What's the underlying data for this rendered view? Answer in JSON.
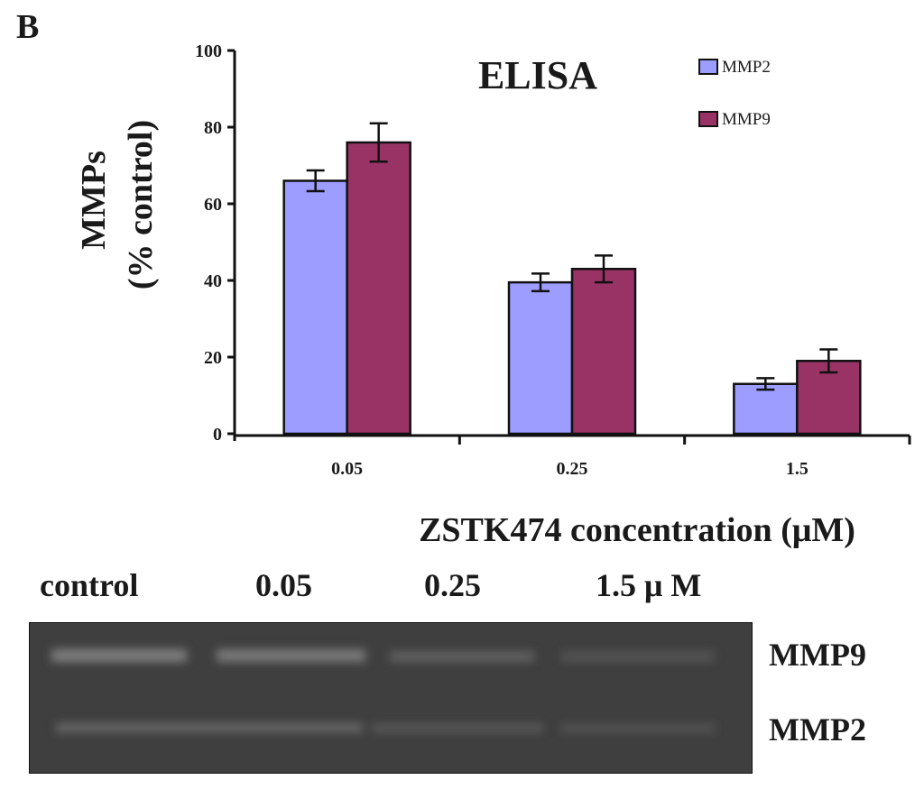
{
  "panel_label": "B",
  "chart_data": {
    "type": "bar",
    "title": "ELISA",
    "xlabel": "ZSTK474 concentration (μM)",
    "ylabel_line1": "MMPs",
    "ylabel_line2": "(% control)",
    "ylim": [
      0,
      100
    ],
    "yticks": [
      0,
      20,
      40,
      60,
      80,
      100
    ],
    "categories": [
      "0.05",
      "0.25",
      "1.5"
    ],
    "series": [
      {
        "name": "MMP2",
        "color": "#9d9dff",
        "values": [
          66,
          39.5,
          13
        ],
        "errors": [
          2.7,
          2.3,
          1.5
        ]
      },
      {
        "name": "MMP9",
        "color": "#993366",
        "values": [
          76,
          43,
          19
        ],
        "errors": [
          5,
          3.5,
          3
        ]
      }
    ],
    "legend_position": "top-right",
    "grid": false
  },
  "gel": {
    "lane_labels": [
      "control",
      "0.05",
      "0.25",
      "1.5 μ M"
    ],
    "band_labels": [
      "MMP9",
      "MMP2"
    ],
    "background_color": "#3f3f3f",
    "band_color": "#8a8a8a"
  }
}
